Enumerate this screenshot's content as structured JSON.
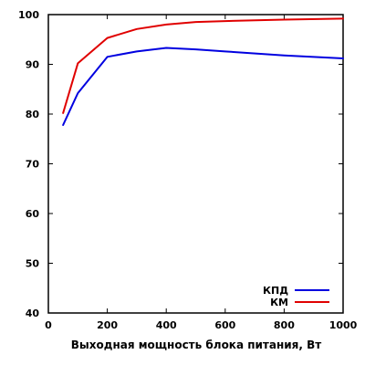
{
  "chart_data": {
    "type": "line",
    "title": "",
    "xlabel": "Выходная мощность блока питания, Вт",
    "ylabel": "",
    "xlim": [
      0,
      1000
    ],
    "ylim": [
      40,
      100
    ],
    "x_ticks": [
      0,
      200,
      400,
      600,
      800,
      1000
    ],
    "y_ticks": [
      40,
      50,
      60,
      70,
      80,
      90,
      100
    ],
    "grid": false,
    "legend_position": "bottom-right",
    "series": [
      {
        "name": "КПД",
        "color": "#0000e0",
        "x": [
          50,
          100,
          200,
          300,
          400,
          500,
          600,
          800,
          1000
        ],
        "y": [
          77.8,
          84.2,
          91.5,
          92.6,
          93.3,
          93.0,
          92.6,
          91.8,
          91.2
        ]
      },
      {
        "name": "КМ",
        "color": "#e00000",
        "x": [
          50,
          100,
          200,
          300,
          400,
          500,
          600,
          800,
          1000
        ],
        "y": [
          80.2,
          90.2,
          95.3,
          97.1,
          98.0,
          98.5,
          98.7,
          99.0,
          99.2
        ]
      }
    ]
  }
}
